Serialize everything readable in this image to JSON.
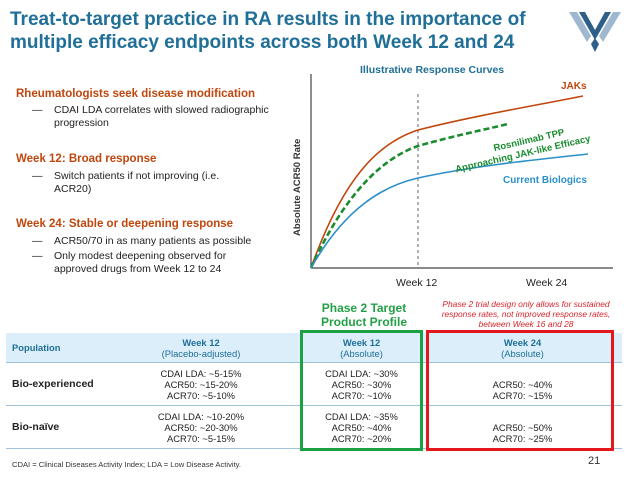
{
  "title": "Treat-to-target practice in RA results in the importance of multiple efficacy endpoints across both Week 12 and 24",
  "left": {
    "sections": [
      {
        "heading": "Rheumatologists seek disease modification",
        "bullets": [
          "CDAI LDA correlates with slowed radiographic progression"
        ]
      },
      {
        "heading": "Week 12: Broad response",
        "bullets": [
          "Switch patients if not improving (i.e. ACR20)"
        ]
      },
      {
        "heading": "Week 24: Stable or deepening response",
        "bullets": [
          "ACR50/70 in as many patients as possible",
          "Only modest deepening observed for approved drugs from Week 12 to 24"
        ]
      }
    ]
  },
  "chart": {
    "title": "Illustrative Response Curves",
    "ylabel": "Absolute ACR50 Rate",
    "x_ticks": [
      "Week 12",
      "Week 24"
    ],
    "labels": {
      "jaks": "JAKs",
      "rosni_1": "Rosnilimab TPP",
      "rosni_2": "Approaching JAK-like Efficacy",
      "biologics": "Current Biologics"
    }
  },
  "chart_data": {
    "type": "line",
    "title": "Illustrative Response Curves",
    "ylabel": "Absolute ACR50 Rate",
    "x_ticks": [
      "Week 12",
      "Week 24"
    ],
    "series": [
      {
        "name": "JAKs",
        "color": "#c0470e",
        "style": "solid"
      },
      {
        "name": "Rosnilimab TPP Approaching JAK-like Efficacy",
        "color": "#1a8c2e",
        "style": "dashed"
      },
      {
        "name": "Current Biologics",
        "color": "#2b8fc8",
        "style": "solid"
      }
    ]
  },
  "phase2": {
    "title": "Phase 2 Target Product Profile",
    "note": "Phase 2 trial design only allows for sustained response rates, not improved response rates, between Week 16 and 28"
  },
  "table": {
    "headers": {
      "population": "Population",
      "w12_title": "Week 12",
      "w12_sub": "(Placebo-adjusted)",
      "tgt12_title": "Week 12",
      "tgt12_sub": "(Absolute)",
      "tgt24_title": "Week 24",
      "tgt24_sub": "(Absolute)"
    },
    "rows": [
      {
        "label": "Bio-experienced",
        "w12": [
          "CDAI LDA: ~5-15%",
          "ACR50: ~15-20%",
          "ACR70: ~5-10%"
        ],
        "tgt12": [
          "CDAI LDA: ~30%",
          "ACR50: ~30%",
          "ACR70: ~10%"
        ],
        "tgt24": [
          "ACR50: ~40%",
          "ACR70: ~15%"
        ]
      },
      {
        "label": "Bio-naïve",
        "w12": [
          "CDAI LDA: ~10-20%",
          "ACR50: ~20-30%",
          "ACR70: ~5-15%"
        ],
        "tgt12": [
          "CDAI LDA: ~35%",
          "ACR50: ~40%",
          "ACR70: ~20%"
        ],
        "tgt24": [
          "ACR50: ~50%",
          "ACR70: ~25%"
        ]
      }
    ]
  },
  "footnote": "CDAI = Clinical Diseases Activity Index; LDA = Low Disease Activity.",
  "page_number": "21",
  "colors": {
    "title_blue": "#1f6f98",
    "heading_orange": "#c0470e",
    "green": "#1aa142",
    "red": "#e3181f"
  }
}
